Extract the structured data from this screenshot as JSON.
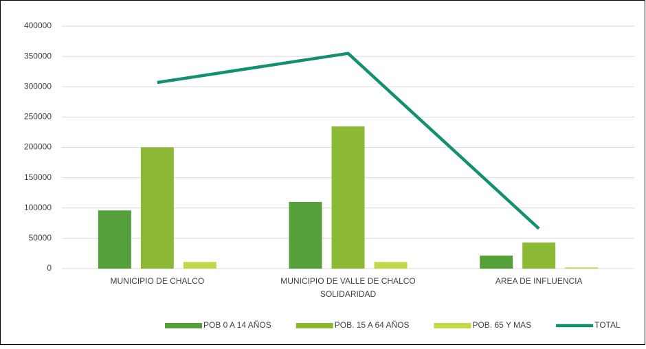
{
  "chart_data": {
    "type": "bar",
    "categories": [
      "MUNICIPIO DE CHALCO",
      "MUNICIPIO DE VALLE DE CHALCO SOLIDARIDAD",
      "AREA DE INFLUENCIA"
    ],
    "series": [
      {
        "name": "POB 0 A 14 AÑOS",
        "color": "#55a03a",
        "type": "bar",
        "values": [
          96000,
          110000,
          21500
        ]
      },
      {
        "name": "POB. 15 A 64 AÑOS",
        "color": "#8cb935",
        "type": "bar",
        "values": [
          200000,
          234500,
          43000
        ]
      },
      {
        "name": "POB. 65 Y MAS",
        "color": "#c4d84b",
        "type": "bar",
        "values": [
          11000,
          11000,
          2000
        ]
      },
      {
        "name": "TOTAL",
        "color": "#12906f",
        "type": "line",
        "values": [
          307000,
          355000,
          66000
        ]
      }
    ],
    "ylim": [
      0,
      400000
    ],
    "yticks": [
      0,
      50000,
      100000,
      150000,
      200000,
      250000,
      300000,
      350000,
      400000
    ],
    "grid": true,
    "legend": "bottom"
  }
}
